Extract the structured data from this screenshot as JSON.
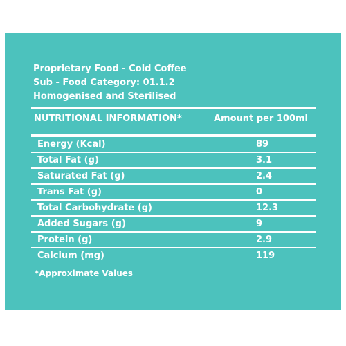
{
  "header_lines": [
    "Proprietary Food - Cold Coffee",
    "Sub - Food Category: 01.1.2",
    "Homogenised and Sterilised"
  ],
  "table": {
    "header_left": "NUTRITIONAL INFORMATION*",
    "header_right": "Amount per 100ml",
    "rows": [
      {
        "label": "Energy (Kcal)",
        "value": "89"
      },
      {
        "label": "Total Fat (g)",
        "value": "3.1"
      },
      {
        "label": "Saturated Fat (g)",
        "value": "2.4"
      },
      {
        "label": "Trans Fat (g)",
        "value": "0"
      },
      {
        "label": "Total Carbohydrate (g)",
        "value": "12.3"
      },
      {
        "label": "Added Sugars (g)",
        "value": "9"
      },
      {
        "label": "Protein (g)",
        "value": "2.9"
      },
      {
        "label": "Calcium (mg)",
        "value": "119"
      }
    ]
  },
  "footnote": "*Approximate Values",
  "colors": {
    "panel": "#4cc2bd",
    "text": "#ffffff"
  }
}
